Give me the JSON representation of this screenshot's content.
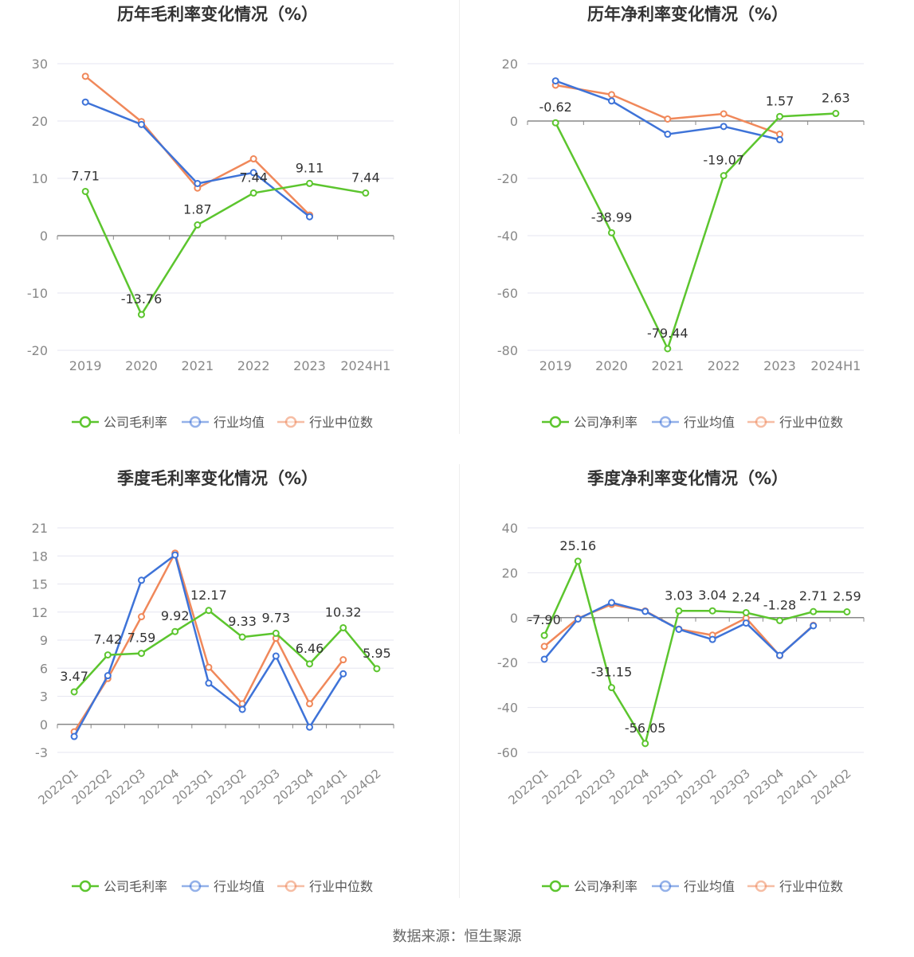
{
  "colors": {
    "company": "#5cc52e",
    "avg": "#3e73d8",
    "median": "#f0885a",
    "grid": "#e6e6f0",
    "axis": "#888888"
  },
  "legend": {
    "avg": "行业均值",
    "median": "行业中位数"
  },
  "footer": "数据来源：恒生聚源",
  "chart_data": [
    {
      "type": "line",
      "title": "历年毛利率变化情况（%）",
      "categories": [
        "2019",
        "2020",
        "2021",
        "2022",
        "2023",
        "2024H1"
      ],
      "ylim": [
        -20,
        30
      ],
      "yticks": [
        -20,
        -10,
        0,
        10,
        20,
        30
      ],
      "rotate_labels": false,
      "series": [
        {
          "name": "公司毛利率",
          "key": "company",
          "values": [
            7.71,
            -13.76,
            1.87,
            7.44,
            9.11,
            7.44
          ],
          "labels": [
            "7.71",
            "-13.76",
            "1.87",
            "7.44",
            "9.11",
            "7.44"
          ]
        },
        {
          "name": "行业均值",
          "key": "avg",
          "values": [
            23.3,
            19.4,
            9.1,
            11.0,
            3.3,
            null
          ]
        },
        {
          "name": "行业中位数",
          "key": "median",
          "values": [
            27.8,
            19.9,
            8.3,
            13.4,
            3.6,
            null
          ]
        }
      ]
    },
    {
      "type": "line",
      "title": "历年净利率变化情况（%）",
      "categories": [
        "2019",
        "2020",
        "2021",
        "2022",
        "2023",
        "2024H1"
      ],
      "ylim": [
        -80,
        20
      ],
      "yticks": [
        -80,
        -60,
        -40,
        -20,
        0,
        20
      ],
      "rotate_labels": false,
      "series": [
        {
          "name": "公司净利率",
          "key": "company",
          "values": [
            -0.62,
            -38.99,
            -79.44,
            -19.07,
            1.57,
            2.63
          ],
          "labels": [
            "-0.62",
            "-38.99",
            "-79.44",
            "-19.07",
            "1.57",
            "2.63"
          ]
        },
        {
          "name": "行业均值",
          "key": "avg",
          "values": [
            14.0,
            7.0,
            -4.6,
            -1.9,
            -6.5,
            null
          ]
        },
        {
          "name": "行业中位数",
          "key": "median",
          "values": [
            12.5,
            9.2,
            0.7,
            2.5,
            -4.6,
            null
          ]
        }
      ]
    },
    {
      "type": "line",
      "title": "季度毛利率变化情况（%）",
      "categories": [
        "2022Q1",
        "2022Q2",
        "2022Q3",
        "2022Q4",
        "2023Q1",
        "2023Q2",
        "2023Q3",
        "2023Q4",
        "2024Q1",
        "2024Q2"
      ],
      "ylim": [
        -3,
        21
      ],
      "yticks": [
        -3,
        0,
        3,
        6,
        9,
        12,
        15,
        18,
        21
      ],
      "rotate_labels": true,
      "series": [
        {
          "name": "公司毛利率",
          "key": "company",
          "values": [
            3.47,
            7.42,
            7.59,
            9.92,
            12.17,
            9.33,
            9.73,
            6.46,
            10.32,
            5.95
          ],
          "labels": [
            "3.47",
            "7.42",
            "7.59",
            "9.92",
            "12.17",
            "9.33",
            "9.73",
            "6.46",
            "10.32",
            "5.95"
          ]
        },
        {
          "name": "行业均值",
          "key": "avg",
          "values": [
            -1.3,
            5.2,
            15.4,
            18.1,
            4.4,
            1.6,
            7.3,
            -0.3,
            5.4,
            null
          ]
        },
        {
          "name": "行业中位数",
          "key": "median",
          "values": [
            -0.8,
            4.9,
            11.5,
            18.3,
            6.1,
            2.2,
            9.2,
            2.2,
            6.9,
            null
          ]
        }
      ]
    },
    {
      "type": "line",
      "title": "季度净利率变化情况（%）",
      "categories": [
        "2022Q1",
        "2022Q2",
        "2022Q3",
        "2022Q4",
        "2023Q1",
        "2023Q2",
        "2023Q3",
        "2023Q4",
        "2024Q1",
        "2024Q2"
      ],
      "ylim": [
        -60,
        40
      ],
      "yticks": [
        -60,
        -40,
        -20,
        0,
        20,
        40
      ],
      "rotate_labels": true,
      "series": [
        {
          "name": "公司净利率",
          "key": "company",
          "values": [
            -7.9,
            25.16,
            -31.15,
            -56.05,
            3.03,
            3.04,
            2.24,
            -1.28,
            2.71,
            2.59
          ],
          "labels": [
            "-7.90",
            "25.16",
            "-31.15",
            "-56.05",
            "3.03",
            "3.04",
            "2.24",
            "-1.28",
            "2.71",
            "2.59"
          ]
        },
        {
          "name": "行业均值",
          "key": "avg",
          "values": [
            -18.5,
            -0.6,
            6.7,
            2.8,
            -5.2,
            -9.7,
            -2.4,
            -16.8,
            -3.6,
            null
          ]
        },
        {
          "name": "行业中位数",
          "key": "median",
          "values": [
            -12.8,
            -0.3,
            5.9,
            3.0,
            -5.1,
            -7.8,
            -0.2,
            -16.9,
            -3.4,
            null
          ]
        }
      ]
    }
  ]
}
